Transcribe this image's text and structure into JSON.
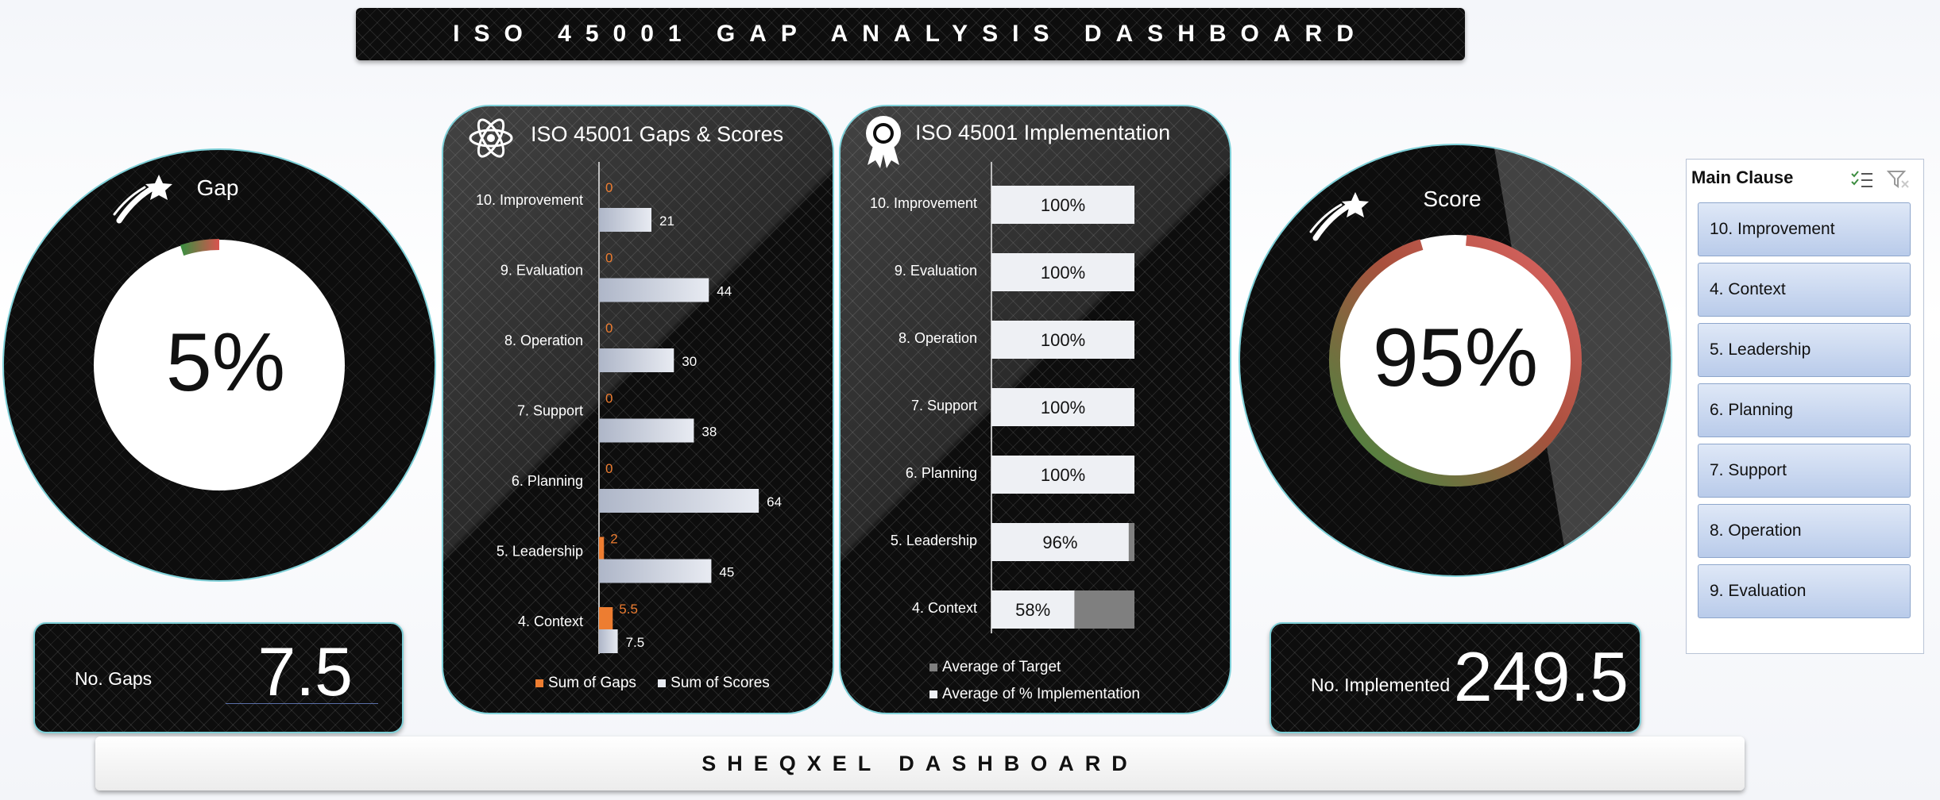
{
  "header": {
    "title": "ISO 45001 GAP ANALYSIS DASHBOARD"
  },
  "footer": {
    "title": "SHEQXEL DASHBOARD"
  },
  "gap_gauge": {
    "label": "Gap",
    "value_text": "5%",
    "value_fraction": 0.05,
    "icon": "shooting-star-icon"
  },
  "score_gauge": {
    "label": "Score",
    "value_text": "95%",
    "value_fraction": 0.95,
    "icon": "shooting-star-icon"
  },
  "no_gaps": {
    "label": "No. Gaps",
    "value": "7.5"
  },
  "no_implemented": {
    "label": "No. Implemented",
    "value": "249.5"
  },
  "gaps_scores_panel": {
    "title": "ISO 45001 Gaps & Scores",
    "icon": "atom-icon"
  },
  "implementation_panel": {
    "title": "ISO 45001 Implementation",
    "icon": "award-ribbon-icon"
  },
  "colors": {
    "gaps": "#ed7d31",
    "scores": "#e8ebf2",
    "target": "#7f7f7f",
    "implementation": "#eef0f4",
    "gauge_red": "#d9534f",
    "gauge_green": "#3e8e41",
    "teal_border": "#7fd0d8"
  },
  "chart_data": [
    {
      "type": "bar",
      "orientation": "horizontal",
      "title": "ISO 45001 Gaps & Scores",
      "categories": [
        "10. Improvement",
        "9. Evaluation",
        "8. Operation",
        "7. Support",
        "6. Planning",
        "5. Leadership",
        "4. Context"
      ],
      "series": [
        {
          "name": "Sum of Gaps",
          "values": [
            0,
            0,
            0,
            0,
            0,
            2,
            5.5
          ],
          "labels": [
            "0",
            "0",
            "0",
            "0",
            "0",
            "2",
            "5.5"
          ]
        },
        {
          "name": "Sum of Scores",
          "values": [
            21,
            44,
            30,
            38,
            64,
            45,
            7.5
          ],
          "labels": [
            "21",
            "44",
            "30",
            "38",
            "64",
            "45",
            "7.5"
          ]
        }
      ],
      "xlim": [
        0,
        70
      ],
      "legend": "bottom"
    },
    {
      "type": "bar",
      "orientation": "horizontal",
      "title": "ISO 45001 Implementation",
      "categories": [
        "10. Improvement",
        "9. Evaluation",
        "8. Operation",
        "7. Support",
        "6. Planning",
        "5. Leadership",
        "4. Context"
      ],
      "series": [
        {
          "name": "Average of Target",
          "values": [
            1,
            1,
            1,
            1,
            1,
            1,
            1
          ]
        },
        {
          "name": "Average of % Implementation",
          "values": [
            1,
            1,
            1,
            1,
            1,
            0.96,
            0.58
          ],
          "labels": [
            "100%",
            "100%",
            "100%",
            "100%",
            "100%",
            "96%",
            "58%"
          ]
        }
      ],
      "xlim": [
        0,
        1
      ],
      "legend": "bottom"
    },
    {
      "type": "pie",
      "title": "Gap",
      "values": [
        0.05,
        0.95
      ],
      "center_label": "5%"
    },
    {
      "type": "pie",
      "title": "Score",
      "values": [
        0.95,
        0.05
      ],
      "center_label": "95%"
    }
  ],
  "slicer": {
    "header": "Main Clause",
    "multiselect_icon": "multi-select-icon",
    "clear_filter_icon": "clear-filter-icon",
    "items": [
      "10. Improvement",
      "4. Context",
      "5. Leadership",
      "6. Planning",
      "7. Support",
      "8. Operation",
      "9. Evaluation"
    ]
  }
}
